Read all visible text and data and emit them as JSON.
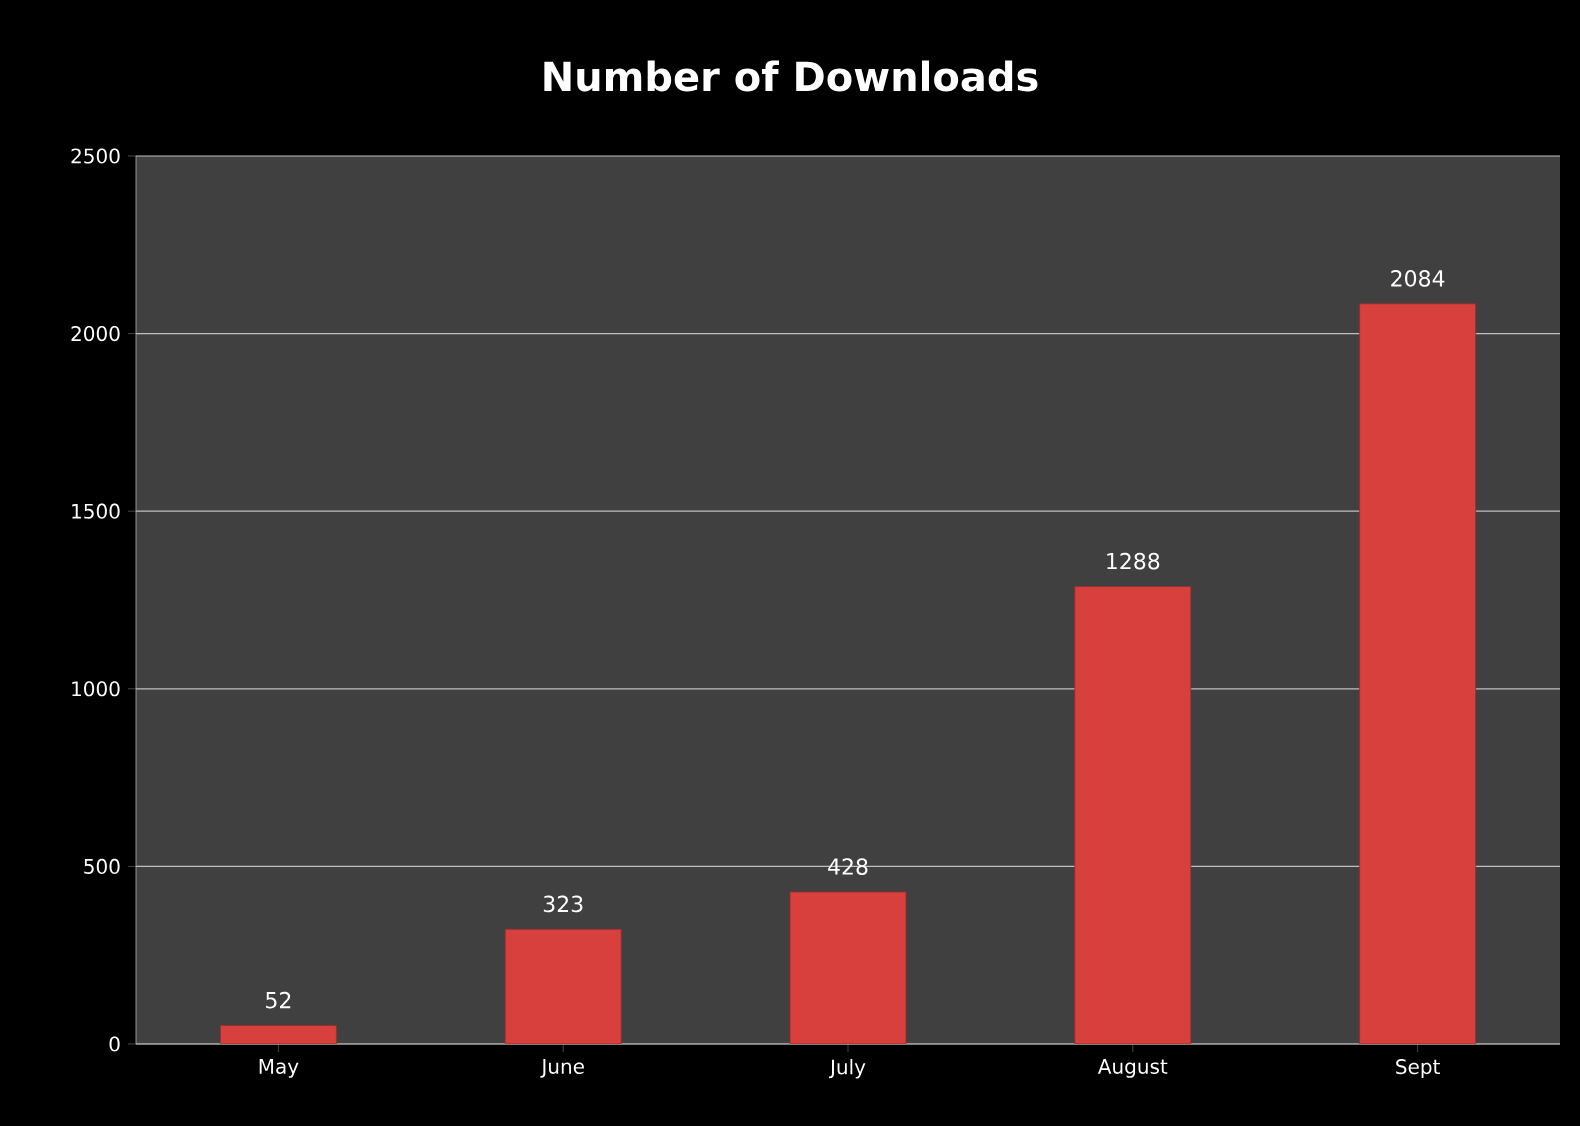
{
  "chart_data": {
    "type": "bar",
    "title": "Number of Downloads",
    "categories": [
      "May",
      "June",
      "July",
      "August",
      "Sept"
    ],
    "values": [
      52,
      323,
      428,
      1288,
      2084
    ],
    "color": "#d8403e",
    "ylim": [
      0,
      2500
    ],
    "yticks": [
      0,
      500,
      1000,
      1500,
      2000,
      2500
    ],
    "grid": "y",
    "data_labels": true
  }
}
